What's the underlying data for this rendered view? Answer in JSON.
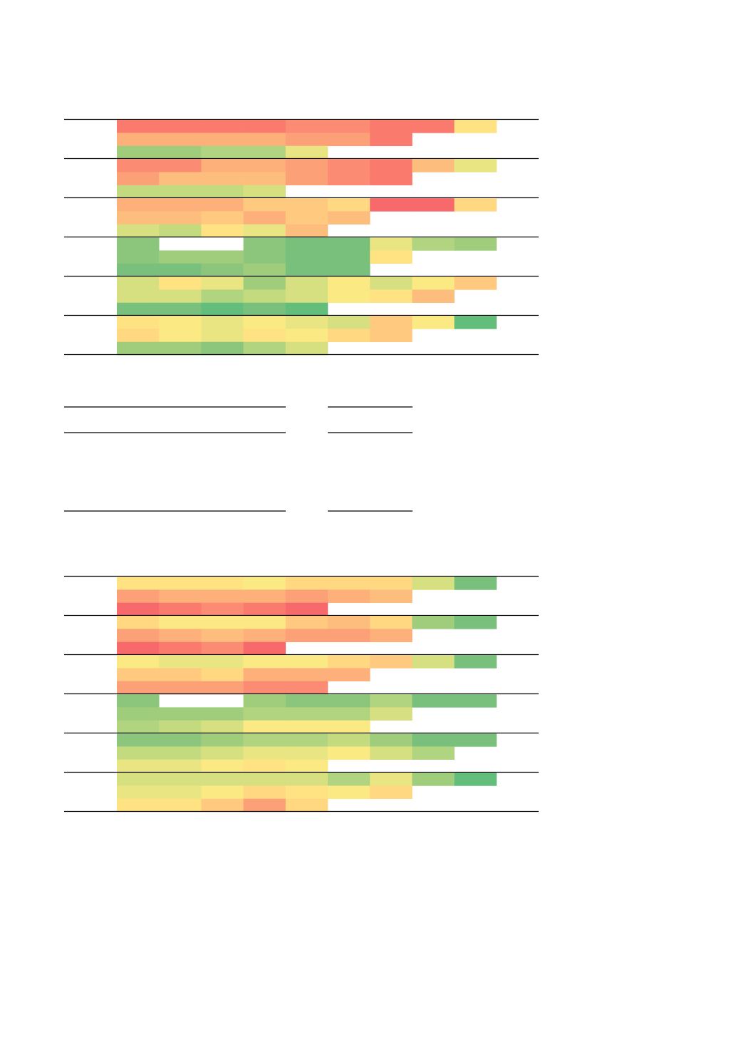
{
  "palette": {
    "r": "#f8696b",
    "R": "#fa7b6e",
    "S": "#fb8b72",
    "o": "#fca077",
    "O": "#fdb07a",
    "p": "#fdbd7d",
    "P": "#ffca7f",
    "q": "#ffd881",
    "y": "#ffe383",
    "Y": "#fbe983",
    "l": "#e9e583",
    "L": "#d6e081",
    "g": "#c3da7e",
    "G": "#b0d47f",
    "h": "#a0cd7c",
    "H": "#8cc67c",
    "k": "#78c07b",
    "K": "#63be7b"
  },
  "chart_data": [
    {
      "type": "heatmap",
      "name": "",
      "columns": 10,
      "blocks": [
        {
          "rows": [
            [
              "R",
              "R",
              "R",
              "R",
              "S",
              "S",
              "R",
              "R",
              "y",
              ""
            ],
            [
              "O",
              "O",
              "O",
              "O",
              "o",
              "o",
              "R",
              "",
              "",
              ""
            ],
            [
              "h",
              "h",
              "G",
              "G",
              "l",
              "",
              "",
              "",
              "",
              ""
            ]
          ]
        },
        {
          "rows": [
            [
              "S",
              "S",
              "O",
              "O",
              "o",
              "S",
              "R",
              "p",
              "l",
              ""
            ],
            [
              "o",
              "p",
              "p",
              "p",
              "o",
              "S",
              "R",
              "",
              "",
              ""
            ],
            [
              "g",
              "g",
              "g",
              "L",
              "",
              "",
              "",
              "",
              "",
              ""
            ]
          ]
        },
        {
          "rows": [
            [
              "O",
              "O",
              "O",
              "P",
              "P",
              "q",
              "r",
              "r",
              "q",
              ""
            ],
            [
              "p",
              "p",
              "P",
              "O",
              "P",
              "p",
              "",
              "",
              "",
              ""
            ],
            [
              "L",
              "g",
              "y",
              "l",
              "p",
              "",
              "",
              "",
              "",
              ""
            ]
          ]
        },
        {
          "rows": [
            [
              "H",
              "",
              "",
              "H",
              "k",
              "k",
              "l",
              "G",
              "h",
              ""
            ],
            [
              "H",
              "h",
              "h",
              "H",
              "k",
              "k",
              "y",
              "",
              "",
              ""
            ],
            [
              "k",
              "k",
              "H",
              "h",
              "k",
              "k",
              "",
              "",
              "",
              ""
            ]
          ]
        },
        {
          "rows": [
            [
              "L",
              "y",
              "l",
              "h",
              "L",
              "Y",
              "L",
              "Y",
              "P",
              ""
            ],
            [
              "L",
              "L",
              "G",
              "g",
              "L",
              "Y",
              "y",
              "p",
              "",
              ""
            ],
            [
              "k",
              "k",
              "K",
              "k",
              "K",
              "",
              "",
              "",
              "",
              ""
            ]
          ]
        },
        {
          "rows": [
            [
              "y",
              "Y",
              "l",
              "Y",
              "l",
              "L",
              "P",
              "Y",
              "K",
              ""
            ],
            [
              "q",
              "Y",
              "l",
              "y",
              "Y",
              "q",
              "P",
              "",
              "",
              ""
            ],
            [
              "h",
              "h",
              "H",
              "G",
              "L",
              "",
              "",
              "",
              "",
              ""
            ]
          ]
        }
      ]
    },
    {
      "type": "heatmap",
      "name": "",
      "columns": 10,
      "blocks": [
        {
          "rows": [
            [
              "y",
              "y",
              "y",
              "Y",
              "q",
              "q",
              "q",
              "L",
              "k",
              ""
            ],
            [
              "o",
              "O",
              "O",
              "O",
              "o",
              "O",
              "p",
              "",
              "",
              ""
            ],
            [
              "r",
              "R",
              "S",
              "R",
              "r",
              "",
              "",
              "",
              "",
              ""
            ]
          ]
        },
        {
          "rows": [
            [
              "q",
              "Y",
              "Y",
              "Y",
              "P",
              "p",
              "q",
              "h",
              "k",
              ""
            ],
            [
              "o",
              "O",
              "p",
              "O",
              "o",
              "o",
              "O",
              "",
              "",
              ""
            ],
            [
              "r",
              "R",
              "S",
              "r",
              "",
              "",
              "",
              "",
              "",
              ""
            ]
          ]
        },
        {
          "rows": [
            [
              "Y",
              "l",
              "l",
              "Y",
              "Y",
              "q",
              "P",
              "L",
              "k",
              ""
            ],
            [
              "P",
              "P",
              "q",
              "O",
              "O",
              "O",
              "",
              "",
              "",
              ""
            ],
            [
              "o",
              "o",
              "o",
              "S",
              "S",
              "",
              "",
              "",
              "",
              ""
            ]
          ]
        },
        {
          "rows": [
            [
              "H",
              "",
              "",
              "h",
              "H",
              "H",
              "G",
              "k",
              "k",
              ""
            ],
            [
              "h",
              "h",
              "h",
              "G",
              "G",
              "G",
              "L",
              "",
              "",
              ""
            ],
            [
              "G",
              "g",
              "L",
              "Y",
              "Y",
              "Y",
              "",
              "",
              "",
              ""
            ]
          ]
        },
        {
          "rows": [
            [
              "H",
              "H",
              "h",
              "G",
              "G",
              "g",
              "h",
              "k",
              "k",
              ""
            ],
            [
              "g",
              "g",
              "L",
              "l",
              "l",
              "Y",
              "L",
              "G",
              "",
              ""
            ],
            [
              "l",
              "l",
              "Y",
              "y",
              "Y",
              "",
              "",
              "",
              "",
              ""
            ]
          ]
        },
        {
          "rows": [
            [
              "L",
              "L",
              "L",
              "L",
              "L",
              "G",
              "l",
              "h",
              "K",
              ""
            ],
            [
              "l",
              "l",
              "Y",
              "q",
              "y",
              "Y",
              "q",
              "",
              "",
              ""
            ],
            [
              "y",
              "y",
              "P",
              "o",
              "q",
              "",
              "",
              "",
              "",
              ""
            ]
          ]
        }
      ]
    }
  ]
}
